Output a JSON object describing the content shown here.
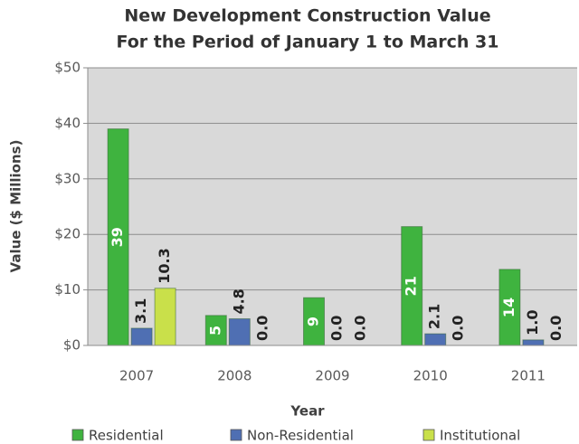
{
  "chart_data": {
    "type": "bar",
    "title": "New Development Construction Value",
    "subtitle": "For the Period of January 1 to March 31",
    "x_label": "Year",
    "y_label": "Value ($ Millions)",
    "categories": [
      "2007",
      "2008",
      "2009",
      "2010",
      "2011"
    ],
    "series": [
      {
        "name": "Residential",
        "color": "#3fb33f",
        "values": [
          39,
          5.4,
          8.6,
          21.4,
          13.7
        ],
        "value_labels": [
          "39",
          "5",
          "9",
          "21",
          "14"
        ]
      },
      {
        "name": "Non-Residential",
        "color": "#4f6fb3",
        "values": [
          3.1,
          4.8,
          0,
          2.1,
          1
        ],
        "value_labels": [
          "3.1",
          "4.8",
          "0.0",
          "2.1",
          "1.0"
        ]
      },
      {
        "name": "Institutional",
        "color": "#c9e04a",
        "values": [
          10.3,
          0,
          0,
          0,
          0
        ],
        "value_labels": [
          "10.3",
          "0.0",
          "0.0",
          "0.0",
          "0.0"
        ]
      }
    ],
    "ylim": [
      0,
      50
    ],
    "yticks": [
      {
        "value": 0,
        "label": "$0"
      },
      {
        "value": 10,
        "label": "$10"
      },
      {
        "value": 20,
        "label": "$20"
      },
      {
        "value": 30,
        "label": "$30"
      },
      {
        "value": 40,
        "label": "$40"
      },
      {
        "value": 50,
        "label": "$50"
      }
    ],
    "grid": true,
    "legend": "bottom"
  }
}
